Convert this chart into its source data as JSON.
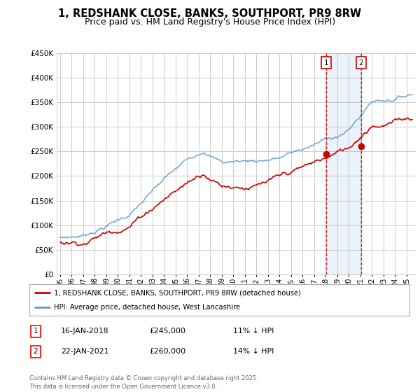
{
  "title": "1, REDSHANK CLOSE, BANKS, SOUTHPORT, PR9 8RW",
  "subtitle": "Price paid vs. HM Land Registry's House Price Index (HPI)",
  "ylim": [
    0,
    450000
  ],
  "yticks": [
    0,
    50000,
    100000,
    150000,
    200000,
    250000,
    300000,
    350000,
    400000,
    450000
  ],
  "ytick_labels": [
    "£0",
    "£50K",
    "£100K",
    "£150K",
    "£200K",
    "£250K",
    "£300K",
    "£350K",
    "£400K",
    "£450K"
  ],
  "xlim_start": 1994.7,
  "xlim_end": 2025.8,
  "legend_line1": "1, REDSHANK CLOSE, BANKS, SOUTHPORT, PR9 8RW (detached house)",
  "legend_line2": "HPI: Average price, detached house, West Lancashire",
  "sale1_date": "16-JAN-2018",
  "sale1_price": "£245,000",
  "sale1_hpi": "11% ↓ HPI",
  "sale1_year": 2018.05,
  "sale1_price_val": 245000,
  "sale2_date": "22-JAN-2021",
  "sale2_price": "£260,000",
  "sale2_hpi": "14% ↓ HPI",
  "sale2_year": 2021.05,
  "sale2_price_val": 260000,
  "footer": "Contains HM Land Registry data © Crown copyright and database right 2025.\nThis data is licensed under the Open Government Licence v3.0.",
  "red_color": "#cc0000",
  "blue_color": "#5b9bd5",
  "bg_color": "#ffffff",
  "grid_color": "#cccccc",
  "title_fontsize": 10.5,
  "subtitle_fontsize": 9
}
